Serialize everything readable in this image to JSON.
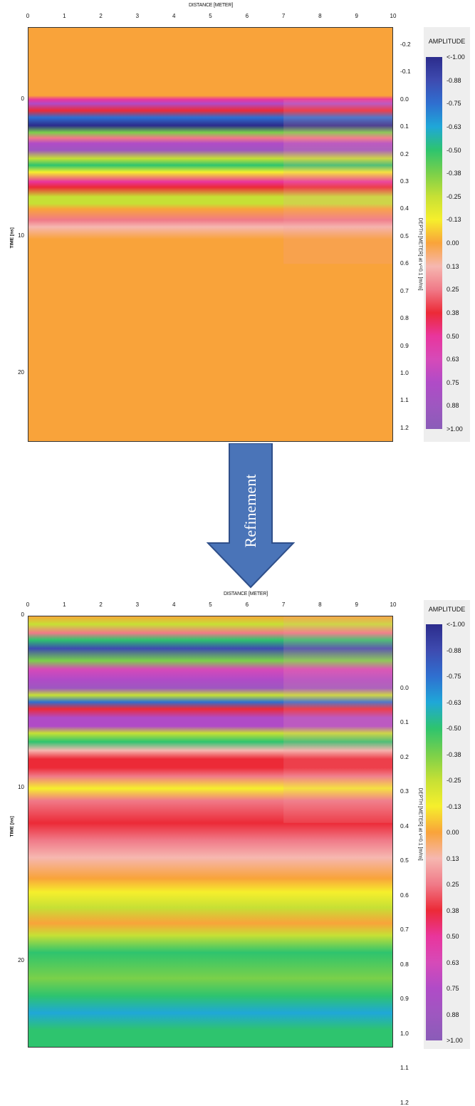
{
  "chart_data": [
    {
      "type": "heatmap",
      "panel": "top",
      "xlabel": "DISTANCE [METER]",
      "ylabel": "TIME [ns]",
      "y2label": "DEPTH [METER] at v=0.1 [m/ns]",
      "x_ticks": [
        "0",
        "1",
        "2",
        "3",
        "4",
        "5",
        "6",
        "7",
        "8",
        "9",
        "10"
      ],
      "y_ticks": [
        "0",
        "10",
        "20"
      ],
      "depth_ticks": [
        "-0.2",
        "-0.1",
        "0.0",
        "0.1",
        "0.2",
        "0.3",
        "0.4",
        "0.5",
        "0.6",
        "0.7",
        "0.8",
        "0.9",
        "1.0",
        "1.1",
        "1.2"
      ],
      "xlim": [
        0,
        10
      ],
      "ylim_time_ns": [
        -5.3,
        25
      ],
      "bands": [
        {
          "t": -5.3,
          "a": 0.0
        },
        {
          "t": -0.3,
          "a": 0.0
        },
        {
          "t": 0.0,
          "a": 0.5
        },
        {
          "t": 0.3,
          "a": 0.75
        },
        {
          "t": 0.8,
          "a": 0.4
        },
        {
          "t": 1.3,
          "a": -0.8
        },
        {
          "t": 1.9,
          "a": -1.0
        },
        {
          "t": 2.4,
          "a": -0.4
        },
        {
          "t": 2.8,
          "a": 0.2
        },
        {
          "t": 3.2,
          "a": 0.7
        },
        {
          "t": 3.7,
          "a": 0.85
        },
        {
          "t": 4.3,
          "a": -0.2
        },
        {
          "t": 4.8,
          "a": -0.45
        },
        {
          "t": 5.3,
          "a": -0.15
        },
        {
          "t": 6.0,
          "a": 0.45
        },
        {
          "t": 6.4,
          "a": 0.35
        },
        {
          "t": 7.1,
          "a": -0.2
        },
        {
          "t": 7.6,
          "a": -0.3
        },
        {
          "t": 8.0,
          "a": 0.05
        },
        {
          "t": 8.8,
          "a": 0.2
        },
        {
          "t": 9.3,
          "a": 0.15
        },
        {
          "t": 10.2,
          "a": 0.0
        },
        {
          "t": 25.0,
          "a": 0.0
        }
      ]
    },
    {
      "type": "heatmap",
      "panel": "bottom",
      "xlabel": "DISTANCE [METER]",
      "ylabel": "TIME [ns]",
      "y2label": "DEPTH [METER] at v=0.1 [m/ns]",
      "x_ticks": [
        "0",
        "1",
        "2",
        "3",
        "4",
        "5",
        "6",
        "7",
        "8",
        "9",
        "10"
      ],
      "y_ticks": [
        "0",
        "10",
        "20"
      ],
      "depth_ticks": [
        "0.0",
        "0.1",
        "0.2",
        "0.3",
        "0.4",
        "0.5",
        "0.6",
        "0.7",
        "0.8",
        "0.9",
        "1.0",
        "1.1",
        "1.2"
      ],
      "xlim": [
        0,
        10
      ],
      "ylim_time_ns": [
        0,
        25
      ],
      "bands": [
        {
          "t": 0.0,
          "a": 0.0
        },
        {
          "t": 0.5,
          "a": -0.2
        },
        {
          "t": 1.0,
          "a": 0.2
        },
        {
          "t": 1.4,
          "a": -0.5
        },
        {
          "t": 1.9,
          "a": -0.85
        },
        {
          "t": 2.6,
          "a": -0.4
        },
        {
          "t": 3.1,
          "a": 0.6
        },
        {
          "t": 3.7,
          "a": 0.75
        },
        {
          "t": 4.2,
          "a": 0.9
        },
        {
          "t": 4.6,
          "a": -0.3
        },
        {
          "t": 5.0,
          "a": -0.7
        },
        {
          "t": 5.4,
          "a": 0.4
        },
        {
          "t": 5.9,
          "a": 0.75
        },
        {
          "t": 6.4,
          "a": 0.8
        },
        {
          "t": 6.8,
          "a": -0.2
        },
        {
          "t": 7.3,
          "a": -0.45
        },
        {
          "t": 7.8,
          "a": 0.1
        },
        {
          "t": 8.3,
          "a": 0.4
        },
        {
          "t": 8.8,
          "a": 0.35
        },
        {
          "t": 9.3,
          "a": 0.2
        },
        {
          "t": 10.0,
          "a": -0.1
        },
        {
          "t": 10.7,
          "a": 0.25
        },
        {
          "t": 12.0,
          "a": 0.35
        },
        {
          "t": 13.0,
          "a": 0.2
        },
        {
          "t": 14.0,
          "a": 0.15
        },
        {
          "t": 15.2,
          "a": 0.05
        },
        {
          "t": 16.0,
          "a": -0.15
        },
        {
          "t": 16.9,
          "a": -0.2
        },
        {
          "t": 17.8,
          "a": 0.0
        },
        {
          "t": 18.5,
          "a": -0.3
        },
        {
          "t": 19.5,
          "a": -0.45
        },
        {
          "t": 21.0,
          "a": -0.4
        },
        {
          "t": 22.0,
          "a": -0.5
        },
        {
          "t": 23.0,
          "a": -0.6
        },
        {
          "t": 24.0,
          "a": -0.55
        },
        {
          "t": 25.0,
          "a": -0.5
        }
      ]
    }
  ],
  "legend": {
    "title": "AMPLITUDE",
    "labels": [
      "<-1.00",
      "-0.88",
      "-0.75",
      "-0.63",
      "-0.50",
      "-0.38",
      "-0.25",
      "-0.13",
      "0.00",
      "0.13",
      "0.25",
      "0.38",
      "0.50",
      "0.63",
      "0.75",
      "0.88",
      ">1.00"
    ],
    "colors": [
      "#2c2c8c",
      "#3e4bb0",
      "#2f6fd0",
      "#1fa7d8",
      "#2ec46e",
      "#7ad04a",
      "#c6e035",
      "#f6ef2c",
      "#f9a33a",
      "#f6b7b0",
      "#f07a88",
      "#ec2a37",
      "#e9359c",
      "#d64ab8",
      "#b04bc7",
      "#9e57c0",
      "#8a5cb8"
    ]
  },
  "arrow": {
    "label": "Refinement",
    "fill": "#4a74b8",
    "stroke": "#2f4f8a"
  }
}
